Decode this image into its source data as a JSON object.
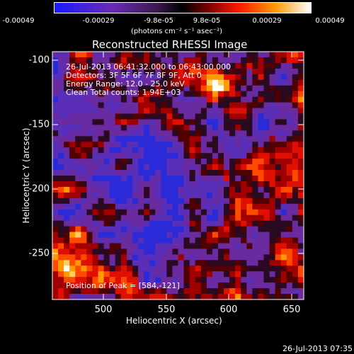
{
  "colorbar": {
    "tick_labels": [
      "-0.00049",
      "-0.00029",
      "-9.8e-05",
      "9.8e-05",
      "0.00029",
      "0.00049"
    ],
    "unit_label": "(photons cm⁻² s⁻¹ asec⁻²)",
    "colors": [
      "#0000ff",
      "#5a2aa8",
      "#7b2fb0",
      "#000000",
      "#b00000",
      "#ff2a00",
      "#ffa000",
      "#ffffff"
    ]
  },
  "title": "Reconstructed RHESSI Image",
  "info": {
    "time_range": "26-Jul-2013 06:41:32.000 to 06:43:00.000",
    "detectors": "Detectors: 3F 5F 6F 7F 8F 9F, Att 0",
    "energy": "Energy Range: 12.0 - 25.0 keV",
    "clean": "Clean    Total counts: 1.94E+03",
    "peak": "Position of Peak = [584,-121]"
  },
  "axes": {
    "ylabel": "Heliocentric  Y  (arcsec)",
    "xlabel": "Heliocentric  X  (arcsec)",
    "yticks": [
      "-100",
      "-150",
      "-200",
      "-250"
    ],
    "xticks": [
      "500",
      "550",
      "600",
      "650"
    ]
  },
  "timestamp": "26-Jul-2013 07:35",
  "image": {
    "x_range": [
      462,
      652
    ],
    "y_range": [
      -287,
      -94
    ]
  }
}
